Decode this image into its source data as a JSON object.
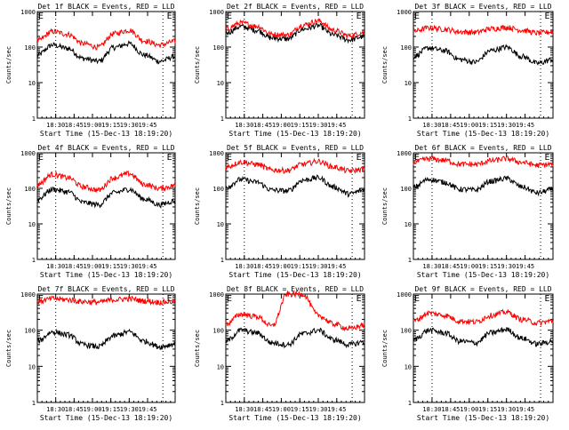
{
  "page": {
    "start_time_label": "Start Time (15-Dec-13 18:19:20)",
    "ylabel": "Counts/sec"
  },
  "chart_data": [
    {
      "type": "line",
      "title": "Det 1f BLACK = Events, RED = LLD",
      "xlabel": "Start Time (15-Dec-13 18:19:20)",
      "ylabel": "Counts/sec",
      "yscale": "log",
      "ylim": [
        1,
        1000
      ],
      "x_tick_labels": [
        "18:30",
        "18:45",
        "19:00",
        "19:15",
        "19:30",
        "19:45"
      ],
      "markers": [
        "E",
        "E"
      ],
      "series": [
        {
          "name": "BLACK = Events",
          "color": "#000000",
          "x": [
            0,
            10,
            20,
            30,
            40,
            50,
            60,
            70,
            80,
            90
          ],
          "y": [
            60,
            115,
            92,
            48,
            40,
            98,
            125,
            60,
            40,
            55
          ]
        },
        {
          "name": "RED = LLD",
          "color": "#ff0000",
          "x": [
            0,
            10,
            20,
            30,
            40,
            50,
            60,
            70,
            80,
            90
          ],
          "y": [
            150,
            275,
            230,
            125,
            100,
            240,
            300,
            150,
            115,
            145
          ]
        }
      ]
    },
    {
      "type": "line",
      "title": "Det 2f BLACK = Events, RED = LLD",
      "xlabel": "Start Time (15-Dec-13 18:19:20)",
      "ylabel": "Counts/sec",
      "yscale": "log",
      "ylim": [
        1,
        1000
      ],
      "x_tick_labels": [
        "18:30",
        "18:45",
        "19:00",
        "19:15",
        "19:30",
        "19:45"
      ],
      "markers": [
        "E",
        "E"
      ],
      "series": [
        {
          "name": "BLACK = Events",
          "color": "#000000",
          "x": [
            0,
            10,
            20,
            30,
            40,
            50,
            60,
            70,
            80,
            90
          ],
          "y": [
            250,
            380,
            300,
            180,
            170,
            320,
            400,
            220,
            160,
            200
          ]
        },
        {
          "name": "RED = LLD",
          "color": "#ff0000",
          "x": [
            0,
            10,
            20,
            30,
            40,
            50,
            60,
            70,
            80,
            90
          ],
          "y": [
            330,
            480,
            390,
            230,
            220,
            420,
            550,
            300,
            210,
            260
          ]
        }
      ]
    },
    {
      "type": "line",
      "title": "Det 3f BLACK = Events, RED = LLD",
      "xlabel": "Start Time (15-Dec-13 18:19:20)",
      "ylabel": "Counts/sec",
      "yscale": "log",
      "ylim": [
        1,
        1000
      ],
      "x_tick_labels": [
        "18:30",
        "18:45",
        "19:00",
        "19:15",
        "19:30",
        "19:45"
      ],
      "markers": [
        "E",
        "E"
      ],
      "series": [
        {
          "name": "BLACK = Events",
          "color": "#000000",
          "x": [
            0,
            10,
            20,
            30,
            40,
            50,
            60,
            70,
            80,
            90
          ],
          "y": [
            55,
            95,
            80,
            45,
            38,
            80,
            100,
            55,
            35,
            45
          ]
        },
        {
          "name": "RED = LLD",
          "color": "#ff0000",
          "x": [
            0,
            10,
            20,
            30,
            40,
            50,
            60,
            70,
            80,
            90
          ],
          "y": [
            280,
            350,
            320,
            270,
            260,
            330,
            360,
            300,
            250,
            270
          ]
        }
      ]
    },
    {
      "type": "line",
      "title": "Det 4f BLACK = Events, RED = LLD",
      "xlabel": "Start Time (15-Dec-13 18:19:20)",
      "ylabel": "Counts/sec",
      "yscale": "log",
      "ylim": [
        1,
        1000
      ],
      "x_tick_labels": [
        "18:30",
        "18:45",
        "19:00",
        "19:15",
        "19:30",
        "19:45"
      ],
      "markers": [
        "E",
        "E"
      ],
      "series": [
        {
          "name": "BLACK = Events",
          "color": "#000000",
          "x": [
            0,
            10,
            20,
            30,
            40,
            50,
            60,
            70,
            80,
            90
          ],
          "y": [
            50,
            95,
            80,
            40,
            35,
            75,
            95,
            50,
            35,
            45
          ]
        },
        {
          "name": "RED = LLD",
          "color": "#ff0000",
          "x": [
            0,
            10,
            20,
            30,
            40,
            50,
            60,
            70,
            80,
            90
          ],
          "y": [
            130,
            250,
            200,
            110,
            90,
            200,
            260,
            130,
            100,
            120
          ]
        }
      ]
    },
    {
      "type": "line",
      "title": "Det 5f BLACK = Events, RED = LLD",
      "xlabel": "Start Time (15-Dec-13 18:19:20)",
      "ylabel": "Counts/sec",
      "yscale": "log",
      "ylim": [
        1,
        1000
      ],
      "x_tick_labels": [
        "18:30",
        "18:45",
        "19:00",
        "19:15",
        "19:30",
        "19:45"
      ],
      "markers": [
        "E",
        "E"
      ],
      "series": [
        {
          "name": "BLACK = Events",
          "color": "#000000",
          "x": [
            0,
            10,
            20,
            30,
            40,
            50,
            60,
            70,
            80,
            90
          ],
          "y": [
            110,
            180,
            150,
            90,
            85,
            170,
            200,
            110,
            70,
            90
          ]
        },
        {
          "name": "RED = LLD",
          "color": "#ff0000",
          "x": [
            0,
            10,
            20,
            30,
            40,
            50,
            60,
            70,
            80,
            90
          ],
          "y": [
            400,
            550,
            480,
            330,
            320,
            480,
            580,
            400,
            310,
            350
          ]
        }
      ]
    },
    {
      "type": "line",
      "title": "Det 6f BLACK = Events, RED = LLD",
      "xlabel": "Start Time (15-Dec-13 18:19:20)",
      "ylabel": "Counts/sec",
      "yscale": "log",
      "ylim": [
        1,
        1000
      ],
      "x_tick_labels": [
        "18:30",
        "18:45",
        "19:00",
        "19:15",
        "19:30",
        "19:45"
      ],
      "markers": [
        "E",
        "E"
      ],
      "series": [
        {
          "name": "BLACK = Events",
          "color": "#000000",
          "x": [
            0,
            10,
            20,
            30,
            40,
            50,
            60,
            70,
            80,
            90
          ],
          "y": [
            110,
            180,
            150,
            95,
            90,
            160,
            190,
            110,
            75,
            95
          ]
        },
        {
          "name": "RED = LLD",
          "color": "#ff0000",
          "x": [
            0,
            10,
            20,
            30,
            40,
            50,
            60,
            70,
            80,
            90
          ],
          "y": [
            550,
            680,
            620,
            480,
            470,
            600,
            690,
            540,
            450,
            480
          ]
        }
      ]
    },
    {
      "type": "line",
      "title": "Det 7f BLACK = Events, RED = LLD",
      "xlabel": "Start Time (15-Dec-13 18:19:20)",
      "ylabel": "Counts/sec",
      "yscale": "log",
      "ylim": [
        1,
        1000
      ],
      "x_tick_labels": [
        "18:30",
        "18:45",
        "19:00",
        "19:15",
        "19:30",
        "19:45"
      ],
      "markers": [
        "E",
        "E"
      ],
      "series": [
        {
          "name": "BLACK = Events",
          "color": "#000000",
          "x": [
            0,
            10,
            20,
            30,
            40,
            50,
            60,
            70,
            80,
            90
          ],
          "y": [
            50,
            90,
            75,
            40,
            35,
            70,
            90,
            50,
            35,
            42
          ]
        },
        {
          "name": "RED = LLD",
          "color": "#ff0000",
          "x": [
            0,
            10,
            20,
            30,
            40,
            50,
            60,
            70,
            80,
            90
          ],
          "y": [
            620,
            750,
            700,
            620,
            600,
            700,
            750,
            650,
            600,
            620
          ]
        }
      ]
    },
    {
      "type": "line",
      "title": "Det 8f BLACK = Events, RED = LLD",
      "xlabel": "Start Time (15-Dec-13 18:19:20)",
      "ylabel": "Counts/sec",
      "yscale": "log",
      "ylim": [
        1,
        1000
      ],
      "x_tick_labels": [
        "18:30",
        "18:45",
        "19:00",
        "19:15",
        "19:30",
        "19:45"
      ],
      "markers": [
        "E",
        "E"
      ],
      "series": [
        {
          "name": "BLACK = Events",
          "color": "#000000",
          "x": [
            0,
            10,
            20,
            30,
            40,
            50,
            60,
            70,
            80,
            90
          ],
          "y": [
            50,
            100,
            85,
            45,
            40,
            80,
            100,
            55,
            40,
            48
          ]
        },
        {
          "name": "RED = LLD",
          "color": "#ff0000",
          "x": [
            0,
            10,
            20,
            30,
            40,
            50,
            60,
            70,
            80,
            90
          ],
          "y": [
            150,
            280,
            240,
            130,
            1000,
            1000,
            260,
            150,
            110,
            140
          ]
        }
      ]
    },
    {
      "type": "line",
      "title": "Det 9f BLACK = Events, RED = LLD",
      "xlabel": "Start Time (15-Dec-13 18:19:20)",
      "ylabel": "Counts/sec",
      "yscale": "log",
      "ylim": [
        1,
        1000
      ],
      "x_tick_labels": [
        "18:30",
        "18:45",
        "19:00",
        "19:15",
        "19:30",
        "19:45"
      ],
      "markers": [
        "E",
        "E"
      ],
      "series": [
        {
          "name": "BLACK = Events",
          "color": "#000000",
          "x": [
            0,
            10,
            20,
            30,
            40,
            50,
            60,
            70,
            80,
            90
          ],
          "y": [
            55,
            100,
            85,
            50,
            45,
            85,
            105,
            60,
            42,
            50
          ]
        },
        {
          "name": "RED = LLD",
          "color": "#ff0000",
          "x": [
            0,
            10,
            20,
            30,
            40,
            50,
            60,
            70,
            80,
            90
          ],
          "y": [
            180,
            300,
            260,
            180,
            170,
            260,
            320,
            200,
            160,
            180
          ]
        }
      ]
    }
  ]
}
